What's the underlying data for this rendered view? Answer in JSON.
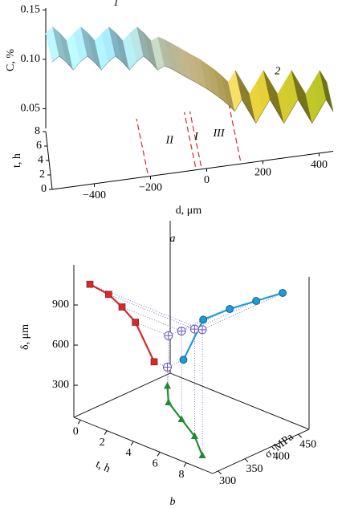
{
  "chart_data": [
    {
      "type": "surface3d",
      "xlabel": "d, μm",
      "ylabel": "t, h",
      "zlabel": "C, %",
      "caption": "a",
      "x": [
        -550,
        -525,
        -500,
        -475,
        -450,
        -425,
        -400,
        -375,
        -350,
        -325,
        -300,
        -275,
        -250,
        -225,
        -200,
        -175,
        -150,
        -125,
        -100,
        -75,
        -50,
        -25,
        0,
        25,
        50,
        75,
        100,
        125,
        150,
        175,
        200,
        225,
        250,
        275,
        300,
        325,
        350,
        375,
        400,
        425,
        450
      ],
      "values": [
        0.112,
        0.118,
        0.112,
        0.104,
        0.112,
        0.118,
        0.112,
        0.104,
        0.112,
        0.118,
        0.112,
        0.104,
        0.112,
        0.118,
        0.112,
        0.104,
        0.108,
        0.105,
        0.101,
        0.097,
        0.093,
        0.089,
        0.085,
        0.08,
        0.075,
        0.069,
        0.062,
        0.074,
        0.062,
        0.05,
        0.062,
        0.074,
        0.062,
        0.05,
        0.062,
        0.074,
        0.062,
        0.05,
        0.062,
        0.074,
        0.062
      ],
      "xlim": [
        -550,
        450
      ],
      "xticks": [
        {
          "value": -400,
          "label": "−400"
        },
        {
          "value": -200,
          "label": "−200"
        },
        0,
        200,
        400
      ],
      "ylim": [
        0,
        8
      ],
      "yticks": [
        0,
        2,
        4,
        6,
        8
      ],
      "zlim": [
        0.03,
        0.152
      ],
      "zticks": [
        0.05,
        {
          "value": 0.1,
          "label": "0.10"
        },
        0.15
      ],
      "colormap": [
        "#a9dde9",
        "#93cddd",
        "#d9c796",
        "#b8a52c",
        "#8f9b1e"
      ],
      "zone_boundaries": [
        -210,
        -40,
        -20,
        120
      ],
      "boundary_color": "#d42a2a",
      "zone_labels": [
        "II",
        "I",
        "III"
      ],
      "curve_labels": [
        "1",
        "2"
      ]
    },
    {
      "type": "scatter3d",
      "xlabel": "t, h",
      "ylabel": "σ, MPa",
      "zlabel": "δ, μm",
      "caption": "b",
      "t": [
        0.5,
        2,
        4,
        6,
        8
      ],
      "sigma": [
        440,
        405,
        380,
        355,
        320
      ],
      "delta": [
        200,
        560,
        720,
        860,
        1000
      ],
      "xlim": [
        -0.5,
        10
      ],
      "xticks": [
        0,
        2,
        4,
        6,
        8
      ],
      "ylim": [
        290,
        470
      ],
      "yticks": [
        300,
        350,
        400,
        450
      ],
      "zlim": [
        60,
        1200
      ],
      "zticks": [
        300,
        600,
        900
      ],
      "colors": {
        "point": "#6a55c4",
        "sigma_delta": "#d42a2a",
        "t_delta": "#1e9ad6",
        "t_sigma": "#1f8a33"
      }
    }
  ]
}
